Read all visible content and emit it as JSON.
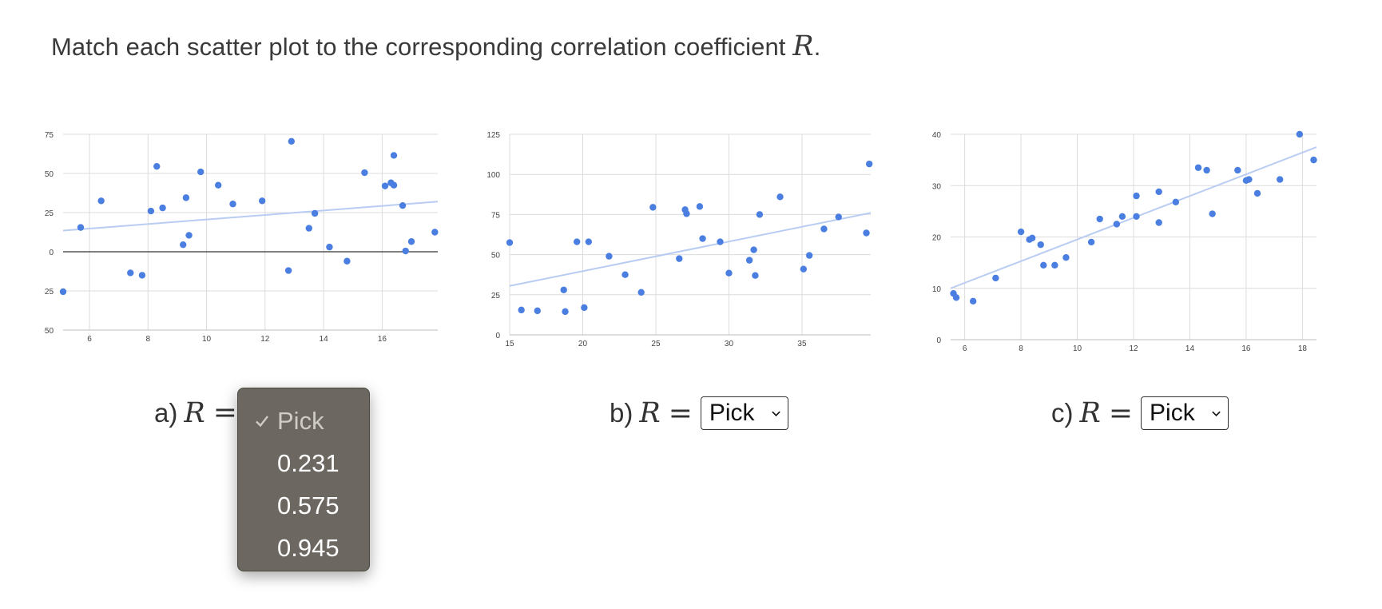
{
  "prompt": {
    "text": "Match each scatter plot to the corresponding correlation coefficient",
    "var": "R",
    "end": "."
  },
  "questions": [
    {
      "letter": "a)",
      "var": "R",
      "eq": "=",
      "selected": "Pick"
    },
    {
      "letter": "b)",
      "var": "R",
      "eq": "=",
      "selected": "Pick"
    },
    {
      "letter": "c)",
      "var": "R",
      "eq": "=",
      "selected": "Pick"
    }
  ],
  "dropdown": {
    "open_for": "a)",
    "options": [
      "Pick",
      "0.231",
      "0.575",
      "0.945"
    ],
    "checked": "Pick"
  },
  "colors": {
    "points": "#4a7ee0",
    "trend": "#b9ccf2",
    "grid": "#dcdcdc",
    "zero_line": "#333333"
  },
  "chart_data": [
    {
      "type": "scatter",
      "x_ticks": [
        "6",
        "8",
        "10",
        "12",
        "14",
        "16"
      ],
      "x_tick_values": [
        6,
        8,
        10,
        12,
        14,
        16
      ],
      "y_ticks": [
        "75",
        "50",
        "25",
        "0",
        "-25",
        "-50"
      ],
      "y_tick_values": [
        75,
        50,
        25,
        0,
        -25,
        -50
      ],
      "xlim": [
        5.1,
        17.9
      ],
      "ylim": [
        -50,
        75
      ],
      "zero_line": true,
      "trendline": [
        [
          5.1,
          13.5
        ],
        [
          17.9,
          32
        ]
      ],
      "points": [
        [
          5.1,
          -25.5
        ],
        [
          5.7,
          15.5
        ],
        [
          6.4,
          32.5
        ],
        [
          7.4,
          -13.5
        ],
        [
          7.8,
          -15
        ],
        [
          8.1,
          26
        ],
        [
          8.3,
          54.5
        ],
        [
          8.5,
          28
        ],
        [
          9.2,
          4.5
        ],
        [
          9.3,
          34.5
        ],
        [
          9.4,
          10.5
        ],
        [
          9.8,
          51
        ],
        [
          10.4,
          42.5
        ],
        [
          10.9,
          30.5
        ],
        [
          11.9,
          32.5
        ],
        [
          12.8,
          -12
        ],
        [
          12.9,
          70.5
        ],
        [
          13.5,
          15
        ],
        [
          13.7,
          24.5
        ],
        [
          14.2,
          3
        ],
        [
          14.8,
          -6
        ],
        [
          15.4,
          50.5
        ],
        [
          16.1,
          42
        ],
        [
          16.3,
          44
        ],
        [
          16.4,
          61.5
        ],
        [
          16.4,
          42.5
        ],
        [
          16.7,
          29.5
        ],
        [
          16.8,
          0.5
        ],
        [
          17,
          6.5
        ],
        [
          17.8,
          12.5
        ]
      ]
    },
    {
      "type": "scatter",
      "x_ticks": [
        "15",
        "20",
        "25",
        "30",
        "35"
      ],
      "x_tick_values": [
        15,
        20,
        25,
        30,
        35
      ],
      "y_ticks": [
        "125",
        "100",
        "75",
        "50",
        "25",
        "0"
      ],
      "y_tick_values": [
        125,
        100,
        75,
        50,
        25,
        0
      ],
      "xlim": [
        15,
        39.7
      ],
      "ylim": [
        0,
        125
      ],
      "zero_line": false,
      "trendline": [
        [
          15,
          30.5
        ],
        [
          39.7,
          76
        ]
      ],
      "points": [
        [
          15,
          57.5
        ],
        [
          15.8,
          15.5
        ],
        [
          16.9,
          15
        ],
        [
          18.7,
          28
        ],
        [
          18.8,
          14.5
        ],
        [
          19.6,
          58
        ],
        [
          20.1,
          17
        ],
        [
          20.4,
          58
        ],
        [
          21.8,
          49
        ],
        [
          22.9,
          37.5
        ],
        [
          24,
          26.5
        ],
        [
          24.8,
          79.5
        ],
        [
          26.6,
          47.5
        ],
        [
          27,
          78
        ],
        [
          27.1,
          75.5
        ],
        [
          28,
          80
        ],
        [
          28.2,
          60
        ],
        [
          29.4,
          58
        ],
        [
          30,
          38.5
        ],
        [
          31.4,
          46.5
        ],
        [
          31.7,
          53
        ],
        [
          31.8,
          37
        ],
        [
          32.1,
          75
        ],
        [
          33.5,
          86
        ],
        [
          35.1,
          41
        ],
        [
          35.5,
          49.5
        ],
        [
          36.5,
          66
        ],
        [
          37.5,
          73.5
        ],
        [
          39.4,
          63.5
        ],
        [
          39.6,
          106.5
        ]
      ]
    },
    {
      "type": "scatter",
      "x_ticks": [
        "6",
        "8",
        "10",
        "12",
        "14",
        "16",
        "18"
      ],
      "x_tick_values": [
        6,
        8,
        10,
        12,
        14,
        16,
        18
      ],
      "y_ticks": [
        "40",
        "30",
        "20",
        "10",
        "0"
      ],
      "y_tick_values": [
        40,
        30,
        20,
        10,
        0
      ],
      "xlim": [
        5.5,
        18.5
      ],
      "ylim": [
        0,
        40
      ],
      "zero_line": false,
      "trendline": [
        [
          5.5,
          10
        ],
        [
          18.5,
          37.5
        ]
      ],
      "points": [
        [
          5.6,
          9
        ],
        [
          5.7,
          8.2
        ],
        [
          6.3,
          7.5
        ],
        [
          7.1,
          12
        ],
        [
          8,
          21
        ],
        [
          8.3,
          19.5
        ],
        [
          8.4,
          19.8
        ],
        [
          8.7,
          18.5
        ],
        [
          8.8,
          14.5
        ],
        [
          9.2,
          14.5
        ],
        [
          9.6,
          16
        ],
        [
          10.5,
          19
        ],
        [
          10.8,
          23.5
        ],
        [
          11.4,
          22.5
        ],
        [
          11.6,
          24
        ],
        [
          12.1,
          28
        ],
        [
          12.1,
          24
        ],
        [
          12.9,
          28.8
        ],
        [
          12.9,
          22.8
        ],
        [
          13.5,
          26.8
        ],
        [
          14.3,
          33.5
        ],
        [
          14.6,
          33
        ],
        [
          14.8,
          24.5
        ],
        [
          15.7,
          33
        ],
        [
          16,
          31
        ],
        [
          16.1,
          31.2
        ],
        [
          16.4,
          28.5
        ],
        [
          17.2,
          31.2
        ],
        [
          17.9,
          40
        ],
        [
          18.4,
          35
        ]
      ]
    }
  ]
}
